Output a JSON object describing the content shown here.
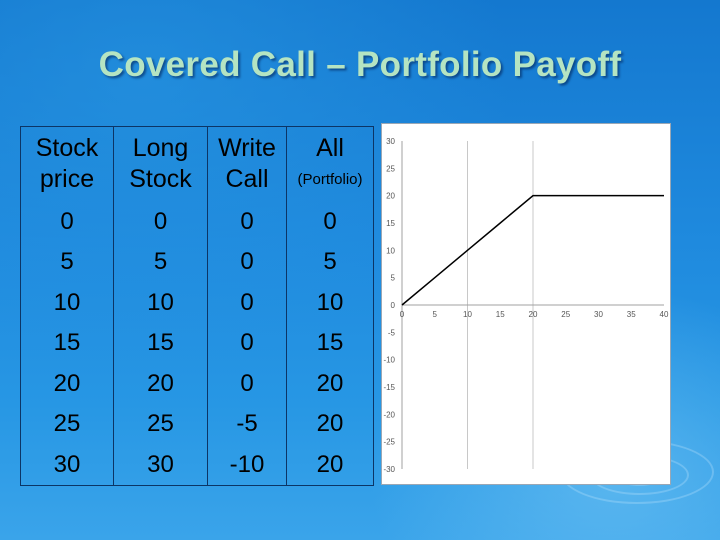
{
  "slide": {
    "title": "Covered Call – Portfolio Payoff"
  },
  "table": {
    "headers": [
      {
        "line1": "Stock",
        "line2": "price"
      },
      {
        "line1": "Long",
        "line2": "Stock"
      },
      {
        "line1": "Write",
        "line2": "Call"
      },
      {
        "line1": "All",
        "line2": "(Portfolio)"
      }
    ],
    "rows": [
      [
        "0",
        "0",
        "0",
        "0"
      ],
      [
        "5",
        "5",
        "0",
        "5"
      ],
      [
        "10",
        "10",
        "0",
        "10"
      ],
      [
        "15",
        "15",
        "0",
        "15"
      ],
      [
        "20",
        "20",
        "0",
        "20"
      ],
      [
        "25",
        "25",
        "-5",
        "20"
      ],
      [
        "30",
        "30",
        "-10",
        "20"
      ]
    ]
  },
  "chart_data": {
    "type": "line",
    "title": "",
    "xlabel": "",
    "ylabel": "",
    "xlim": [
      0,
      40
    ],
    "ylim": [
      -30,
      30
    ],
    "x_ticks": [
      "0",
      "5",
      "10",
      "15",
      "20",
      "25",
      "30",
      "35",
      "40"
    ],
    "y_ticks": [
      "30",
      "25",
      "20",
      "15",
      "10",
      "5",
      "0",
      "-5",
      "-10",
      "-15",
      "-20",
      "-25",
      "-30"
    ],
    "gridlines_x": [
      10,
      20
    ],
    "series": [
      {
        "x": [
          0,
          5,
          10,
          15,
          20,
          25,
          30,
          35,
          40
        ],
        "y": [
          0,
          5,
          10,
          15,
          20,
          20,
          20,
          20,
          20
        ],
        "color": "#000000"
      }
    ]
  }
}
